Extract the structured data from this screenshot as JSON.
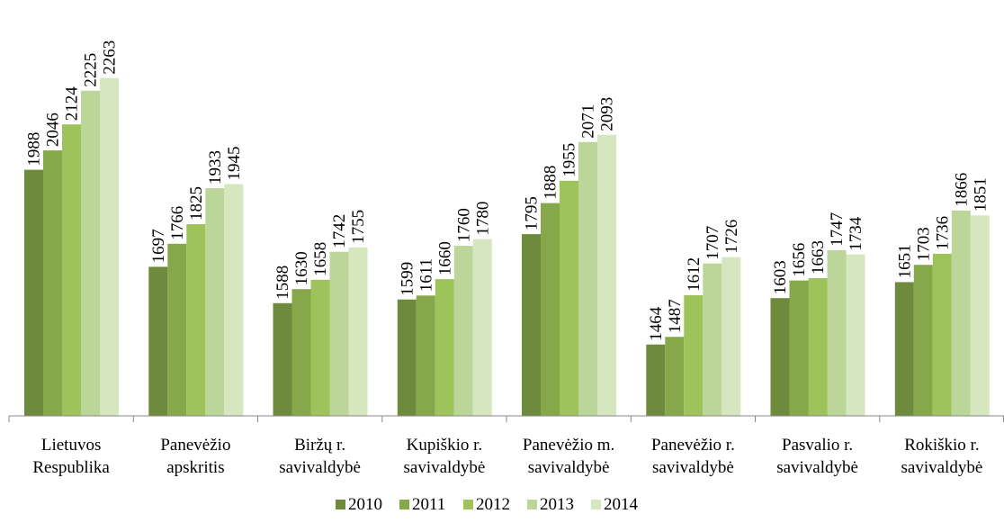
{
  "chart_data": {
    "type": "bar",
    "categories": [
      [
        "Lietuvos",
        "Respublika"
      ],
      [
        "Panevėžio",
        "apskritis"
      ],
      [
        "Biržų r.",
        "savivaldybė"
      ],
      [
        "Kupiškio r.",
        "savivaldybė"
      ],
      [
        "Panevėžio m.",
        "savivaldybė"
      ],
      [
        "Panevėžio r.",
        "savivaldybė"
      ],
      [
        "Pasvalio r.",
        "savivaldybė"
      ],
      [
        "Rokiškio r.",
        "savivaldybė"
      ]
    ],
    "series": [
      {
        "name": "2010",
        "color": "#6e8a3c",
        "values": [
          1988,
          1697,
          1588,
          1599,
          1795,
          1464,
          1603,
          1651
        ]
      },
      {
        "name": "2011",
        "color": "#87a84a",
        "values": [
          2046,
          1766,
          1630,
          1611,
          1888,
          1487,
          1656,
          1703
        ]
      },
      {
        "name": "2012",
        "color": "#9dc35a",
        "values": [
          2124,
          1825,
          1658,
          1660,
          1955,
          1612,
          1663,
          1736
        ]
      },
      {
        "name": "2013",
        "color": "#bcd69a",
        "values": [
          2225,
          1933,
          1742,
          1760,
          2071,
          1707,
          1747,
          1866
        ]
      },
      {
        "name": "2014",
        "color": "#d6e6bf",
        "values": [
          2263,
          1945,
          1755,
          1780,
          2093,
          1726,
          1734,
          1851
        ]
      }
    ],
    "title": "",
    "xlabel": "",
    "ylabel": "",
    "ylim": [
      1250,
      2300
    ],
    "grid": false,
    "legend": "bottom",
    "data_labels": true
  }
}
